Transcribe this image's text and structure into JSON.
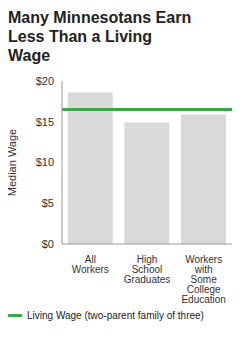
{
  "chart_data": {
    "type": "bar",
    "title": "Many Minnesotans Earn Less Than a Living Wage",
    "y_label": "Median Wage",
    "categories": [
      "All Workers",
      "High School Graduates",
      "Workers with Some College Education"
    ],
    "values": [
      18.6,
      14.9,
      15.9
    ],
    "color": "#d9d9d9",
    "ylim": [
      0,
      20
    ],
    "yticks": [
      {
        "value": 0,
        "label": "$0"
      },
      {
        "value": 5,
        "label": "$5"
      },
      {
        "value": 10,
        "label": "$10"
      },
      {
        "value": 15,
        "label": "$15"
      },
      {
        "value": 20,
        "label": "$20"
      }
    ],
    "grid": false,
    "reference_line": {
      "value": 16.5,
      "label": "Living Wage (two-parent family of three)",
      "color": "#3aa843"
    }
  }
}
